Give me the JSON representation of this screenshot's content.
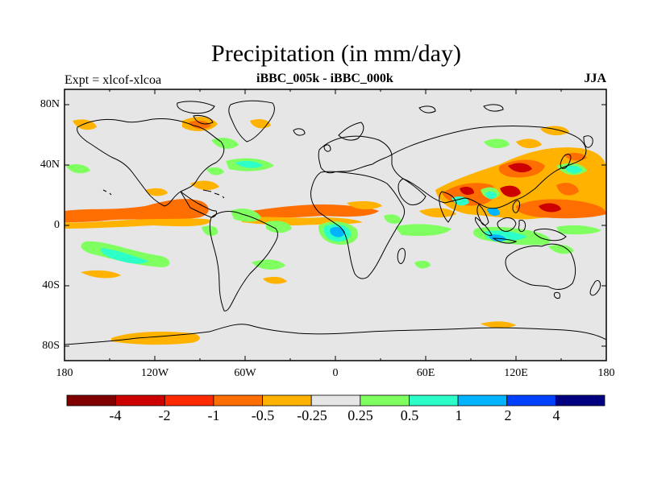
{
  "map": {
    "title": "Precipitation (in mm/day)",
    "subtitle_left": "Expt = xlcof-xlcoa",
    "subtitle_center": "iBBC_005k - iBBC_000k",
    "subtitle_right": "JJA",
    "lat_labels": [
      "80N",
      "40N",
      "0",
      "40S",
      "80S"
    ],
    "lon_labels": [
      "180",
      "120W",
      "60W",
      "0",
      "60E",
      "120E",
      "180"
    ],
    "background_color": "#e6e6e6",
    "coastline_color": "#000000"
  },
  "colorbar": {
    "colors": [
      "#800000",
      "#cc0000",
      "#ff2a00",
      "#ff6e00",
      "#ffb300",
      "#e6e6e6",
      "#80ff60",
      "#2dffc8",
      "#00b4ff",
      "#0040ff",
      "#000080"
    ],
    "labels": [
      "-4",
      "-2",
      "-1",
      "-0.5",
      "-0.25",
      "0.25",
      "0.5",
      "1",
      "2",
      "4"
    ]
  },
  "legend": {
    "dry_strong": "#cc0000",
    "dry": "#ff6e00",
    "dry_weak": "#ffb300",
    "wet_weak": "#80ff60",
    "wet": "#2dffc8",
    "wet_strong": "#00b4ff",
    "wet_max": "#0040ff"
  }
}
